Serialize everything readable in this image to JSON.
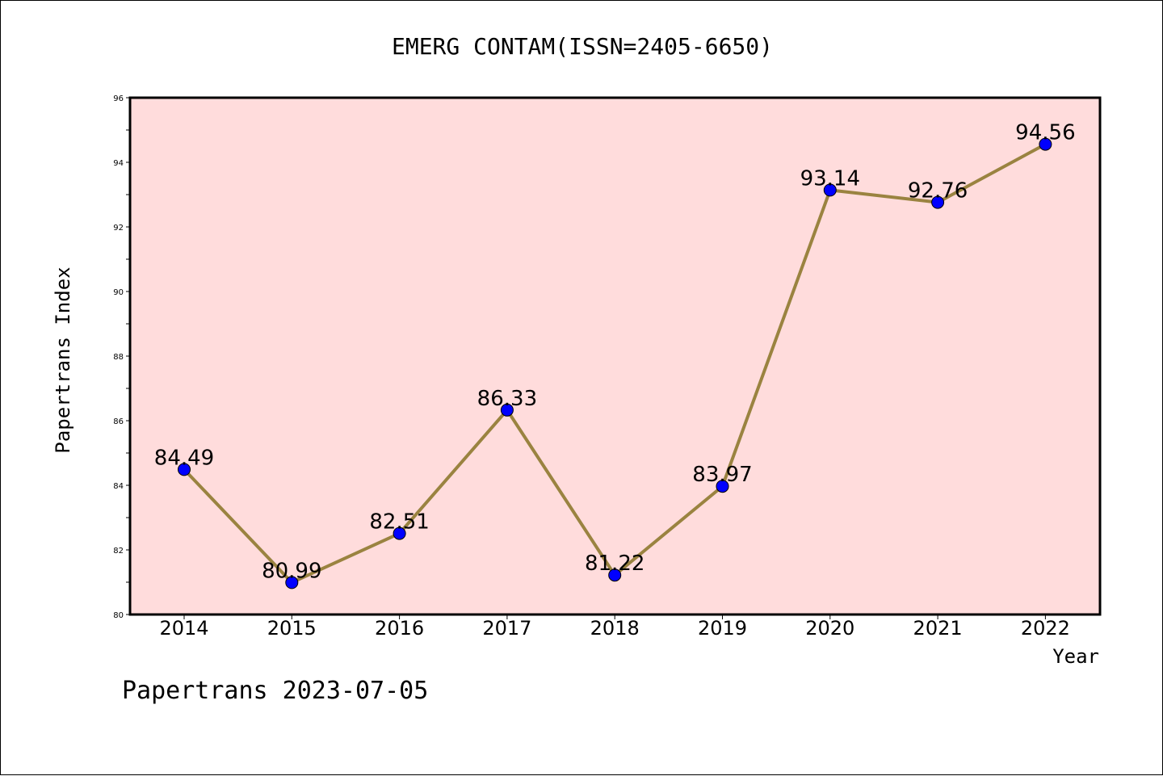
{
  "chart_data": {
    "type": "line",
    "title": "EMERG CONTAM(ISSN=2405-6650)",
    "xlabel": "Year",
    "ylabel": "Papertrans Index",
    "categories": [
      "2014",
      "2015",
      "2016",
      "2017",
      "2018",
      "2019",
      "2020",
      "2021",
      "2022"
    ],
    "series": [
      {
        "values": [
          84.49,
          80.99,
          82.51,
          86.33,
          81.22,
          83.97,
          93.14,
          92.76,
          94.56
        ],
        "labels": [
          "84.49",
          "80.99",
          "82.51",
          "86.33",
          "81.22",
          "83.97",
          "93.14",
          "92.76",
          "94.56"
        ]
      }
    ],
    "ylim": [
      80,
      96
    ],
    "yticks": [
      80,
      82,
      84,
      86,
      88,
      90,
      92,
      94,
      96
    ],
    "ytick_labels": [
      "80",
      "82",
      "84",
      "86",
      "88",
      "90",
      "92",
      "94",
      "96"
    ],
    "grid": false,
    "footer": "Papertrans 2023-07-05",
    "colors": {
      "plot_background": "#ffdcdc",
      "line": "#9a8340",
      "marker": "#0000ff",
      "axis": "#000000"
    }
  }
}
